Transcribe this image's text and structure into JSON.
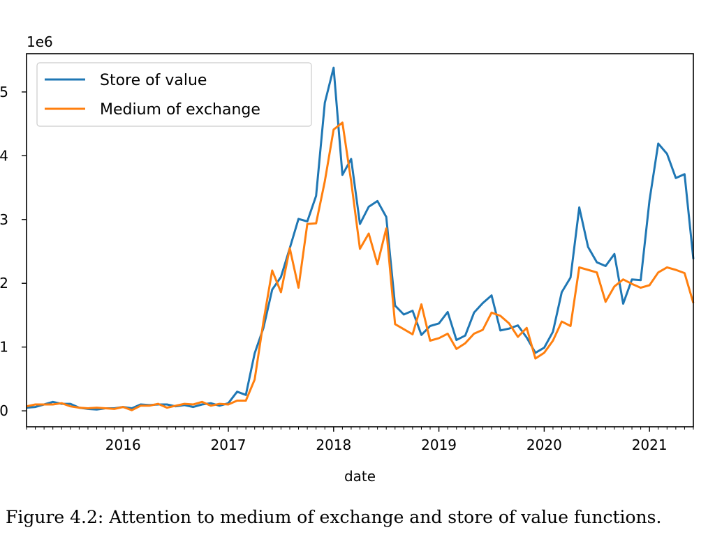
{
  "caption": "Figure 4.2: Attention to medium of exchange and store of value functions.",
  "chart_data": {
    "type": "line",
    "xlabel": "date",
    "ylabel": "",
    "y_offset_text": "1e6",
    "xlim": [
      "2015-02",
      "2021-06"
    ],
    "ylim": [
      -0.25,
      5.6
    ],
    "y_multiplier": 1000000,
    "yticks": [
      0,
      1,
      2,
      3,
      4,
      5
    ],
    "xticks": [
      {
        "date": "2016-01",
        "label": "2016"
      },
      {
        "date": "2017-01",
        "label": "2017"
      },
      {
        "date": "2018-01",
        "label": "2018"
      },
      {
        "date": "2019-01",
        "label": "2019"
      },
      {
        "date": "2020-01",
        "label": "2020"
      },
      {
        "date": "2021-01",
        "label": "2021"
      }
    ],
    "legend_position": "top-left",
    "grid": false,
    "x": [
      "2015-02",
      "2015-03",
      "2015-04",
      "2015-05",
      "2015-06",
      "2015-07",
      "2015-08",
      "2015-09",
      "2015-10",
      "2015-11",
      "2015-12",
      "2016-01",
      "2016-02",
      "2016-03",
      "2016-04",
      "2016-05",
      "2016-06",
      "2016-07",
      "2016-08",
      "2016-09",
      "2016-10",
      "2016-11",
      "2016-12",
      "2017-01",
      "2017-02",
      "2017-03",
      "2017-04",
      "2017-05",
      "2017-06",
      "2017-07",
      "2017-08",
      "2017-09",
      "2017-10",
      "2017-11",
      "2017-12",
      "2018-01",
      "2018-02",
      "2018-03",
      "2018-04",
      "2018-05",
      "2018-06",
      "2018-07",
      "2018-08",
      "2018-09",
      "2018-10",
      "2018-11",
      "2018-12",
      "2019-01",
      "2019-02",
      "2019-03",
      "2019-04",
      "2019-05",
      "2019-06",
      "2019-07",
      "2019-08",
      "2019-09",
      "2019-10",
      "2019-11",
      "2019-12",
      "2020-01",
      "2020-02",
      "2020-03",
      "2020-04",
      "2020-05",
      "2020-06",
      "2020-07",
      "2020-08",
      "2020-09",
      "2020-10",
      "2020-11",
      "2020-12",
      "2021-01",
      "2021-02",
      "2021-03",
      "2021-04",
      "2021-05",
      "2021-06"
    ],
    "series": [
      {
        "name": "Store of value",
        "color": "#1f77b4",
        "values": [
          0.05,
          0.06,
          0.1,
          0.14,
          0.11,
          0.11,
          0.05,
          0.03,
          0.02,
          0.04,
          0.04,
          0.06,
          0.04,
          0.1,
          0.09,
          0.1,
          0.1,
          0.07,
          0.09,
          0.06,
          0.1,
          0.12,
          0.08,
          0.12,
          0.3,
          0.25,
          0.9,
          1.3,
          1.9,
          2.1,
          2.55,
          3.01,
          2.97,
          3.37,
          4.83,
          5.38,
          3.7,
          3.95,
          2.93,
          3.2,
          3.29,
          3.04,
          1.65,
          1.51,
          1.57,
          1.19,
          1.33,
          1.37,
          1.55,
          1.11,
          1.18,
          1.54,
          1.69,
          1.81,
          1.26,
          1.29,
          1.34,
          1.15,
          0.91,
          0.99,
          1.24,
          1.86,
          2.09,
          3.19,
          2.57,
          2.33,
          2.27,
          2.46,
          1.68,
          2.06,
          2.05,
          3.3,
          4.19,
          4.03,
          3.65,
          3.71,
          2.38
        ]
      },
      {
        "name": "Medium of exchange",
        "color": "#ff7f0e",
        "values": [
          0.07,
          0.1,
          0.1,
          0.1,
          0.12,
          0.07,
          0.05,
          0.04,
          0.05,
          0.04,
          0.03,
          0.06,
          0.01,
          0.08,
          0.08,
          0.11,
          0.05,
          0.08,
          0.11,
          0.1,
          0.14,
          0.08,
          0.11,
          0.1,
          0.16,
          0.16,
          0.49,
          1.4,
          2.2,
          1.86,
          2.55,
          1.93,
          2.93,
          2.94,
          3.6,
          4.41,
          4.52,
          3.6,
          2.54,
          2.78,
          2.3,
          2.86,
          1.36,
          1.28,
          1.2,
          1.67,
          1.1,
          1.14,
          1.21,
          0.97,
          1.06,
          1.21,
          1.27,
          1.54,
          1.49,
          1.37,
          1.16,
          1.3,
          0.82,
          0.91,
          1.1,
          1.4,
          1.33,
          2.25,
          2.21,
          2.17,
          1.71,
          1.95,
          2.06,
          1.99,
          1.93,
          1.97,
          2.17,
          2.25,
          2.21,
          2.16,
          1.69
        ]
      }
    ]
  }
}
